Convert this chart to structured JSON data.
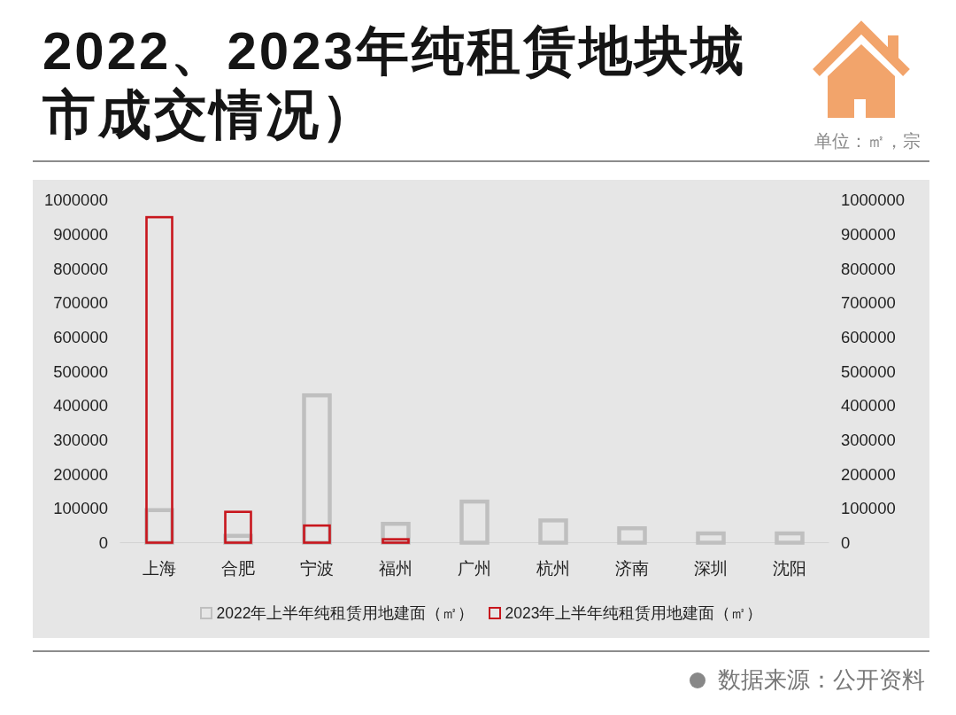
{
  "chart_data": {
    "type": "bar",
    "title": "2022、2023年纯租赁地块城市成交情况）",
    "categories": [
      "上海",
      "合肥",
      "宁波",
      "福州",
      "广州",
      "杭州",
      "济南",
      "深圳",
      "沈阳"
    ],
    "series": [
      {
        "name": "2022年上半年纯租赁用地建面（㎡）",
        "color": "#bfbfbf",
        "values": [
          95000,
          20000,
          430000,
          55000,
          120000,
          65000,
          42000,
          27000,
          27000
        ]
      },
      {
        "name": "2023年上半年纯租赁用地建面（㎡）",
        "color": "#c8161d",
        "values": [
          950000,
          90000,
          50000,
          10000,
          null,
          null,
          null,
          null,
          null
        ]
      }
    ],
    "ylim": [
      0,
      1000000
    ],
    "yticks": [
      0,
      100000,
      200000,
      300000,
      400000,
      500000,
      600000,
      700000,
      800000,
      900000,
      1000000
    ],
    "y2lim": [
      0,
      1000000
    ],
    "y2ticks": [
      0,
      100000,
      200000,
      300000,
      400000,
      500000,
      600000,
      700000,
      800000,
      900000,
      1000000
    ],
    "legend": "bottom",
    "annotations": [
      "单位：㎡，宗",
      "数据来源：公开资料"
    ]
  }
}
